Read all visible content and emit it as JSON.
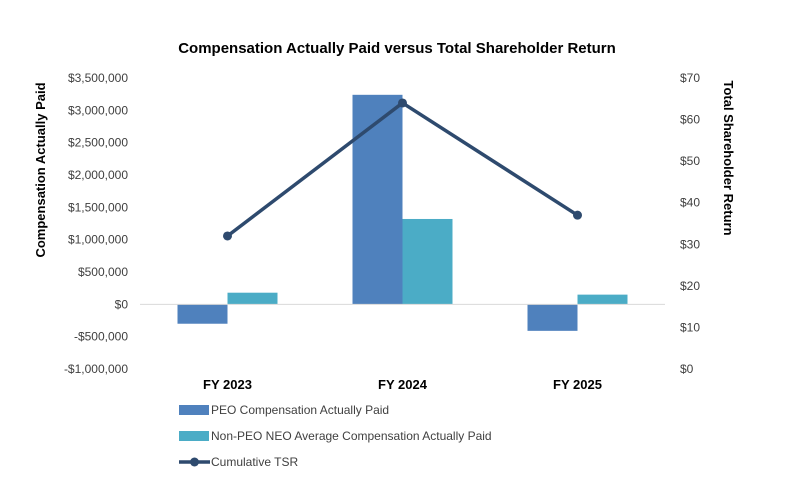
{
  "chart_data": {
    "type": "bar",
    "title": "Compensation Actually Paid versus Total Shareholder Return",
    "categories": [
      "FY 2023",
      "FY 2024",
      "FY 2025"
    ],
    "ylabel_left": "Compensation Actually Paid",
    "ylabel_right": "Total Shareholder Return",
    "ylim_left": [
      -1000000,
      3500000
    ],
    "ylim_right": [
      0,
      70
    ],
    "left_ticks": [
      3500000,
      3000000,
      2500000,
      2000000,
      1500000,
      1000000,
      500000,
      0,
      -500000,
      -1000000
    ],
    "left_tick_labels": [
      "$3,500,000",
      "$3,000,000",
      "$2,500,000",
      "$2,000,000",
      "$1,500,000",
      "$1,000,000",
      "$500,000",
      "$0",
      "-$500,000",
      "-$1,000,000"
    ],
    "right_ticks": [
      70,
      60,
      50,
      40,
      30,
      20,
      10,
      0
    ],
    "right_tick_labels": [
      "$70",
      "$60",
      "$50",
      "$40",
      "$30",
      "$20",
      "$10",
      "$0"
    ],
    "series": [
      {
        "name": "PEO Compensation Actually Paid",
        "type": "bar",
        "axis": "left",
        "color": "#4F81BD",
        "values": [
          -300000,
          3240000,
          -410000
        ]
      },
      {
        "name": "Non-PEO NEO Average Compensation Actually Paid",
        "type": "bar",
        "axis": "left",
        "color": "#4BACC6",
        "values": [
          180000,
          1320000,
          150000
        ]
      },
      {
        "name": "Cumulative TSR",
        "type": "line",
        "axis": "right",
        "color": "#2E4A6E",
        "values": [
          32,
          64,
          37
        ]
      }
    ],
    "legend_position": "bottom-left",
    "grid": false
  }
}
